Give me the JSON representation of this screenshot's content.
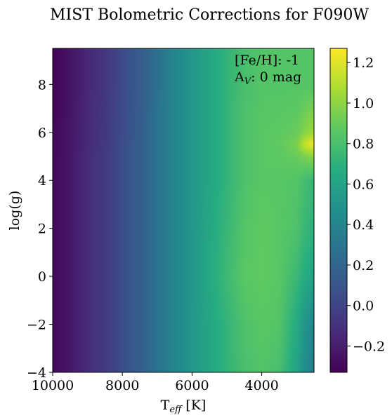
{
  "chart_data": {
    "type": "heatmap",
    "title": "MIST Bolometric Corrections for F090W",
    "xlabel": "T_eff [K]",
    "xlabel_main": "T",
    "xlabel_sub": "eff",
    "xlabel_tail": " [K]",
    "ylabel": "log(g)",
    "xlim": [
      10000,
      2500
    ],
    "ylim": [
      -4,
      9.5
    ],
    "x_ticks": [
      10000,
      8000,
      6000,
      4000
    ],
    "x_tick_labels": [
      "10000",
      "8000",
      "6000",
      "4000"
    ],
    "y_ticks": [
      -4,
      -2,
      0,
      2,
      4,
      6,
      8
    ],
    "y_tick_labels": [
      "−4",
      "−2",
      "0",
      "2",
      "4",
      "6",
      "8"
    ],
    "colorbar": {
      "range": [
        -0.33,
        1.27
      ],
      "ticks": [
        -0.2,
        0.0,
        0.2,
        0.4,
        0.6,
        0.8,
        1.0,
        1.2
      ],
      "tick_labels": [
        "−0.2",
        "0.0",
        "0.2",
        "0.4",
        "0.6",
        "0.8",
        "1.0",
        "1.2"
      ],
      "colormap": "viridis"
    },
    "annotations": {
      "feh_label": "[Fe/H]: -1",
      "av_main": "A",
      "av_sub": "V",
      "av_tail": ": 0 mag"
    },
    "teff_grid": [
      10000,
      9500,
      9000,
      8500,
      8000,
      7500,
      7000,
      6500,
      6000,
      5500,
      5000,
      4500,
      4000,
      3500,
      3000,
      2750,
      2500
    ],
    "logg_grid": [
      -4,
      -2,
      0,
      2,
      4,
      5,
      5.5,
      6,
      8,
      9.5
    ],
    "bc_values": [
      [
        -0.3,
        -0.22,
        -0.13,
        -0.05,
        0.05,
        0.15,
        0.28,
        0.4,
        0.52,
        0.62,
        0.72,
        0.8,
        0.84,
        0.8,
        0.6,
        0.45,
        0.35
      ],
      [
        -0.3,
        -0.22,
        -0.13,
        -0.05,
        0.05,
        0.15,
        0.28,
        0.4,
        0.52,
        0.62,
        0.72,
        0.82,
        0.86,
        0.84,
        0.65,
        0.5,
        0.4
      ],
      [
        -0.3,
        -0.22,
        -0.13,
        -0.05,
        0.05,
        0.15,
        0.28,
        0.4,
        0.52,
        0.64,
        0.76,
        0.86,
        0.88,
        0.86,
        0.75,
        0.66,
        0.6
      ],
      [
        -0.3,
        -0.22,
        -0.13,
        -0.05,
        0.05,
        0.15,
        0.28,
        0.4,
        0.52,
        0.63,
        0.74,
        0.84,
        0.88,
        0.86,
        0.82,
        0.74,
        0.7
      ],
      [
        -0.3,
        -0.22,
        -0.13,
        -0.05,
        0.05,
        0.15,
        0.28,
        0.4,
        0.52,
        0.62,
        0.72,
        0.82,
        0.86,
        0.85,
        0.84,
        0.78,
        0.74
      ],
      [
        -0.3,
        -0.22,
        -0.13,
        -0.05,
        0.05,
        0.15,
        0.28,
        0.4,
        0.52,
        0.62,
        0.72,
        0.82,
        0.86,
        0.87,
        0.9,
        0.95,
        1.0
      ],
      [
        -0.31,
        -0.23,
        -0.14,
        -0.06,
        0.05,
        0.15,
        0.28,
        0.4,
        0.52,
        0.62,
        0.72,
        0.82,
        0.86,
        0.88,
        0.95,
        1.15,
        1.25
      ],
      [
        -0.31,
        -0.23,
        -0.14,
        -0.06,
        0.04,
        0.15,
        0.28,
        0.4,
        0.52,
        0.62,
        0.72,
        0.82,
        0.86,
        0.87,
        0.9,
        0.98,
        1.05
      ],
      [
        -0.32,
        -0.24,
        -0.15,
        -0.07,
        0.04,
        0.14,
        0.27,
        0.4,
        0.52,
        0.62,
        0.72,
        0.8,
        0.84,
        0.84,
        0.84,
        0.84,
        0.84
      ],
      [
        -0.32,
        -0.24,
        -0.15,
        -0.07,
        0.04,
        0.14,
        0.27,
        0.4,
        0.52,
        0.62,
        0.72,
        0.8,
        0.84,
        0.84,
        0.84,
        0.84,
        0.84
      ]
    ]
  }
}
